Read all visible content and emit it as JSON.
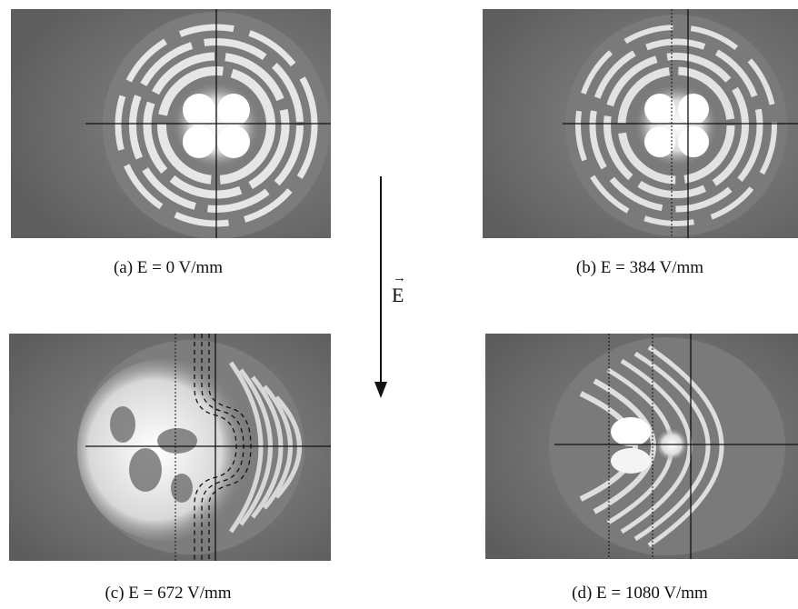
{
  "figure": {
    "panels": [
      {
        "id": "a",
        "caption": "(a) E = 0 V/mm",
        "field_v_per_mm": 0
      },
      {
        "id": "b",
        "caption": "(b) E = 384 V/mm",
        "field_v_per_mm": 384
      },
      {
        "id": "c",
        "caption": "(c) E = 672 V/mm",
        "field_v_per_mm": 672
      },
      {
        "id": "d",
        "caption": "(d) E = 1080 V/mm",
        "field_v_per_mm": 1080
      }
    ],
    "field_label": "E",
    "field_arrow_symbol": "→"
  }
}
